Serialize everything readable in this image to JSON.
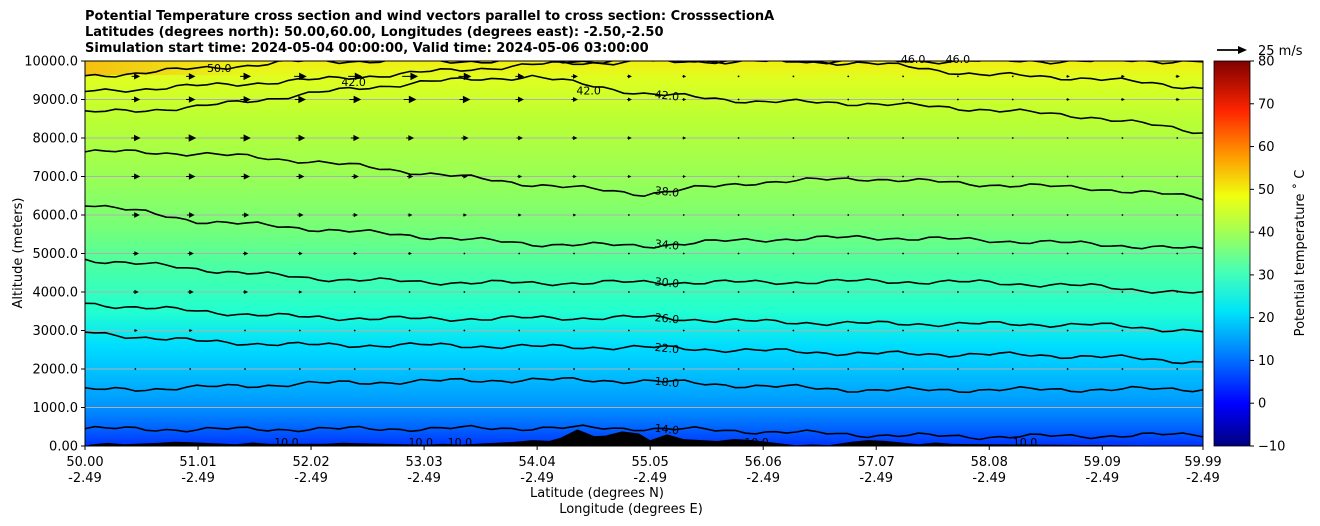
{
  "header": {
    "title_line1": "Potential Temperature cross section and wind vectors parallel to cross section: CrosssectionA",
    "title_line2": "Latitudes (degrees north): 50.00,60.00, Longitudes (degrees east): -2.50,-2.50",
    "title_line3": "Simulation start time: 2024-05-04 00:00:00, Valid time: 2024-05-06 03:00:00"
  },
  "chart_data": {
    "type": "heatmap",
    "ylabel": "Altitude (meters)",
    "xlabel_line1": "Latitude (degrees N)",
    "xlabel_line2": "Longitude (degrees E)",
    "ylim": [
      0,
      10000
    ],
    "xlim": [
      50.0,
      59.99
    ],
    "y_ticks": [
      {
        "value": 0,
        "label": "0.00"
      },
      {
        "value": 1000,
        "label": "1000.0"
      },
      {
        "value": 2000,
        "label": "2000.0"
      },
      {
        "value": 3000,
        "label": "3000.0"
      },
      {
        "value": 4000,
        "label": "4000.0"
      },
      {
        "value": 5000,
        "label": "5000.0"
      },
      {
        "value": 6000,
        "label": "6000.0"
      },
      {
        "value": 7000,
        "label": "7000.0"
      },
      {
        "value": 8000,
        "label": "8000.0"
      },
      {
        "value": 9000,
        "label": "9000.0"
      },
      {
        "value": 10000,
        "label": "10000.0"
      }
    ],
    "x_ticks": [
      {
        "value": 50.0,
        "lat": "50.00",
        "lon": "-2.49"
      },
      {
        "value": 51.01,
        "lat": "51.01",
        "lon": "-2.49"
      },
      {
        "value": 52.02,
        "lat": "52.02",
        "lon": "-2.49"
      },
      {
        "value": 53.03,
        "lat": "53.03",
        "lon": "-2.49"
      },
      {
        "value": 54.04,
        "lat": "54.04",
        "lon": "-2.49"
      },
      {
        "value": 55.05,
        "lat": "55.05",
        "lon": "-2.49"
      },
      {
        "value": 56.06,
        "lat": "56.06",
        "lon": "-2.49"
      },
      {
        "value": 57.07,
        "lat": "57.07",
        "lon": "-2.49"
      },
      {
        "value": 58.08,
        "lat": "58.08",
        "lon": "-2.49"
      },
      {
        "value": 59.09,
        "lat": "59.09",
        "lon": "-2.49"
      },
      {
        "value": 59.99,
        "lat": "59.99",
        "lon": "-2.49"
      }
    ],
    "grid": "horizontal",
    "colormap": "jet",
    "colorbar": {
      "label": "Potential temperature ˚ C",
      "range": [
        -10,
        80
      ],
      "ticks": [
        "−10",
        "0",
        "10",
        "20",
        "30",
        "40",
        "50",
        "60",
        "70",
        "80"
      ]
    },
    "quiver_key": {
      "label": "25 m/s",
      "speed": 25
    },
    "contours": [
      {
        "level": 14.0,
        "label": "14.0",
        "heights": [
          450,
          430,
          440,
          450,
          470,
          460,
          380,
          290,
          240,
          260,
          300
        ]
      },
      {
        "level": 18.0,
        "label": "18.0",
        "heights": [
          1450,
          1520,
          1620,
          1680,
          1720,
          1690,
          1560,
          1450,
          1460,
          1470,
          1480
        ]
      },
      {
        "level": 22.0,
        "label": "22.0",
        "heights": [
          2950,
          2720,
          2620,
          2620,
          2580,
          2560,
          2480,
          2400,
          2380,
          2330,
          2180
        ]
      },
      {
        "level": 26.0,
        "label": "26.0",
        "heights": [
          3700,
          3500,
          3340,
          3300,
          3320,
          3340,
          3230,
          3180,
          3170,
          3150,
          2980
        ]
      },
      {
        "level": 30.0,
        "label": "30.0",
        "heights": [
          4850,
          4600,
          4360,
          4260,
          4230,
          4250,
          4250,
          4280,
          4250,
          4150,
          3950
        ]
      },
      {
        "level": 34.0,
        "label": "34.0",
        "heights": [
          6300,
          5850,
          5650,
          5450,
          5250,
          5200,
          5360,
          5420,
          5350,
          5250,
          5100
        ]
      },
      {
        "level": 38.0,
        "label": "38.0",
        "heights": [
          7650,
          7600,
          7400,
          7100,
          6800,
          6550,
          6850,
          6950,
          6800,
          6700,
          6450
        ]
      },
      {
        "level": 42.0,
        "label": "42.0",
        "heights": [
          8650,
          8800,
          9150,
          9450,
          9600,
          9150,
          8950,
          8900,
          8750,
          8550,
          8150
        ]
      },
      {
        "level": 46.0,
        "label": "46.0",
        "heights": [
          9200,
          9350,
          9500,
          9700,
          9900,
          10000,
          10000,
          9950,
          9650,
          9550,
          9300
        ]
      },
      {
        "level": 50.0,
        "label": "50.0",
        "heights": [
          9600,
          9800,
          10000,
          10000,
          10000,
          10000,
          10000,
          10000,
          10000,
          10000,
          10000
        ]
      }
    ],
    "surface_label": {
      "level": 10.0,
      "label": "10.0"
    },
    "winds": [
      {
        "alt": 9600,
        "speeds": [
          8,
          10,
          14,
          18,
          8,
          4,
          2,
          2,
          2,
          3,
          4
        ]
      },
      {
        "alt": 9000,
        "speeds": [
          8,
          10,
          12,
          14,
          8,
          4,
          2,
          2,
          2,
          3,
          4
        ]
      },
      {
        "alt": 8000,
        "speeds": [
          8,
          12,
          10,
          8,
          6,
          4,
          2,
          2,
          2,
          2,
          2
        ]
      },
      {
        "alt": 7000,
        "speeds": [
          8,
          10,
          8,
          6,
          4,
          3,
          2,
          2,
          2,
          2,
          2
        ]
      },
      {
        "alt": 6000,
        "speeds": [
          8,
          8,
          6,
          4,
          3,
          2,
          2,
          2,
          2,
          2,
          2
        ]
      },
      {
        "alt": 5000,
        "speeds": [
          6,
          6,
          4,
          3,
          2,
          2,
          2,
          2,
          2,
          2,
          2
        ]
      },
      {
        "alt": 4000,
        "speeds": [
          5,
          6,
          3,
          2,
          2,
          2,
          2,
          2,
          2,
          2,
          2
        ]
      },
      {
        "alt": 3000,
        "speeds": [
          3,
          3,
          2,
          2,
          2,
          2,
          2,
          2,
          2,
          2,
          2
        ]
      },
      {
        "alt": 2000,
        "speeds": [
          2,
          2,
          2,
          2,
          2,
          2,
          2,
          2,
          2,
          2,
          2
        ]
      }
    ],
    "terrain": [
      {
        "lat": 50.2,
        "alt": 80
      },
      {
        "lat": 50.8,
        "alt": 160
      },
      {
        "lat": 51.5,
        "alt": 90
      },
      {
        "lat": 52.3,
        "alt": 120
      },
      {
        "lat": 53.2,
        "alt": 60
      },
      {
        "lat": 54.0,
        "alt": 220
      },
      {
        "lat": 54.4,
        "alt": 430
      },
      {
        "lat": 54.8,
        "alt": 540
      },
      {
        "lat": 55.2,
        "alt": 300
      },
      {
        "lat": 55.8,
        "alt": 260
      },
      {
        "lat": 56.5,
        "alt": 40
      },
      {
        "lat": 57.0,
        "alt": 220
      },
      {
        "lat": 57.6,
        "alt": 90
      }
    ]
  }
}
